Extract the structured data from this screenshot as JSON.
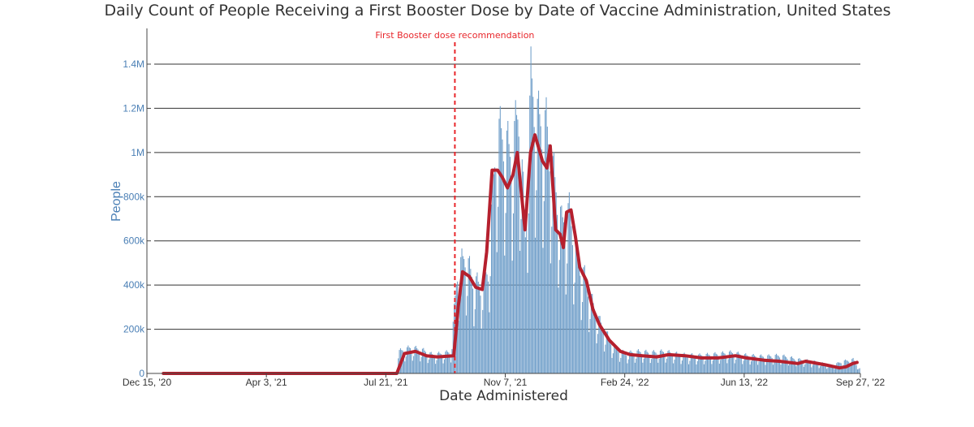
{
  "chart_data": {
    "type": "bar",
    "title": "Daily Count of People Receiving a First Booster Dose by Date of Vaccine Administration, United States",
    "xlabel": "Date Administered",
    "ylabel": "People",
    "ylim": [
      0,
      1500000
    ],
    "yticks": [
      0,
      200000,
      400000,
      600000,
      800000,
      1000000,
      1200000,
      1400000
    ],
    "ytick_labels": [
      "0",
      "200k",
      "400k",
      "600k",
      "800k",
      "1M",
      "1.2M",
      "1.4M"
    ],
    "xlim": [
      "2020-12-15",
      "2022-09-27"
    ],
    "xticks": [
      "2020-12-15",
      "2021-04-03",
      "2021-07-21",
      "2021-11-07",
      "2022-02-24",
      "2022-06-13",
      "2022-09-27"
    ],
    "xtick_labels": [
      "Dec 15, '20",
      "Apr 3, '21",
      "Jul 21, '21",
      "Nov 7, '21",
      "Feb 24, '22",
      "Jun 13, '22",
      "Sep 27, '22"
    ],
    "grid": true,
    "annotation": {
      "text": "First Booster dose recommendation",
      "date": "2021-09-22"
    },
    "series": [
      {
        "type": "bar",
        "color": "#6f9ec9",
        "points": [
          [
            "2021-08-01",
            110000
          ],
          [
            "2021-08-12",
            130000
          ],
          [
            "2021-08-22",
            120000
          ],
          [
            "2021-09-01",
            95000
          ],
          [
            "2021-09-10",
            100000
          ],
          [
            "2021-09-18",
            110000
          ],
          [
            "2021-09-24",
            520000
          ],
          [
            "2021-10-01",
            600000
          ],
          [
            "2021-10-08",
            480000
          ],
          [
            "2021-10-15",
            440000
          ],
          [
            "2021-10-22",
            520000
          ],
          [
            "2021-10-26",
            900000
          ],
          [
            "2021-10-30",
            1220000
          ],
          [
            "2021-11-05",
            1200000
          ],
          [
            "2021-11-12",
            1100000
          ],
          [
            "2021-11-19",
            1340000
          ],
          [
            "2021-11-25",
            700000
          ],
          [
            "2021-11-30",
            1480000
          ],
          [
            "2021-12-07",
            1280000
          ],
          [
            "2021-12-14",
            1250000
          ],
          [
            "2021-12-21",
            1000000
          ],
          [
            "2021-12-28",
            760000
          ],
          [
            "2022-01-04",
            820000
          ],
          [
            "2022-01-11",
            600000
          ],
          [
            "2022-01-18",
            490000
          ],
          [
            "2022-01-25",
            360000
          ],
          [
            "2022-02-01",
            260000
          ],
          [
            "2022-02-08",
            190000
          ],
          [
            "2022-02-15",
            130000
          ],
          [
            "2022-02-24",
            100000
          ],
          [
            "2022-03-08",
            110000
          ],
          [
            "2022-03-20",
            105000
          ],
          [
            "2022-04-01",
            110000
          ],
          [
            "2022-04-15",
            95000
          ],
          [
            "2022-05-01",
            90000
          ],
          [
            "2022-05-15",
            95000
          ],
          [
            "2022-06-01",
            105000
          ],
          [
            "2022-06-15",
            90000
          ],
          [
            "2022-07-01",
            85000
          ],
          [
            "2022-07-15",
            90000
          ],
          [
            "2022-08-01",
            70000
          ],
          [
            "2022-08-15",
            60000
          ],
          [
            "2022-09-01",
            40000
          ],
          [
            "2022-09-10",
            60000
          ],
          [
            "2022-09-20",
            70000
          ],
          [
            "2022-09-26",
            25000
          ]
        ]
      },
      {
        "type": "line",
        "color": "#b5202e",
        "points": [
          [
            "2020-12-30",
            0
          ],
          [
            "2021-07-31",
            0
          ],
          [
            "2021-08-07",
            90000
          ],
          [
            "2021-08-17",
            100000
          ],
          [
            "2021-08-27",
            80000
          ],
          [
            "2021-09-06",
            75000
          ],
          [
            "2021-09-21",
            80000
          ],
          [
            "2021-09-25",
            300000
          ],
          [
            "2021-09-29",
            460000
          ],
          [
            "2021-10-05",
            440000
          ],
          [
            "2021-10-11",
            390000
          ],
          [
            "2021-10-17",
            380000
          ],
          [
            "2021-10-21",
            550000
          ],
          [
            "2021-10-26",
            920000
          ],
          [
            "2021-10-31",
            920000
          ],
          [
            "2021-11-04",
            890000
          ],
          [
            "2021-11-09",
            840000
          ],
          [
            "2021-11-14",
            900000
          ],
          [
            "2021-11-18",
            1000000
          ],
          [
            "2021-11-22",
            800000
          ],
          [
            "2021-11-25",
            650000
          ],
          [
            "2021-11-30",
            1000000
          ],
          [
            "2021-12-04",
            1080000
          ],
          [
            "2021-12-11",
            960000
          ],
          [
            "2021-12-15",
            930000
          ],
          [
            "2021-12-18",
            1030000
          ],
          [
            "2021-12-23",
            650000
          ],
          [
            "2021-12-27",
            630000
          ],
          [
            "2021-12-30",
            570000
          ],
          [
            "2022-01-02",
            730000
          ],
          [
            "2022-01-06",
            740000
          ],
          [
            "2022-01-10",
            620000
          ],
          [
            "2022-01-14",
            480000
          ],
          [
            "2022-01-20",
            420000
          ],
          [
            "2022-01-26",
            290000
          ],
          [
            "2022-02-01",
            220000
          ],
          [
            "2022-02-10",
            150000
          ],
          [
            "2022-02-20",
            100000
          ],
          [
            "2022-03-01",
            85000
          ],
          [
            "2022-03-12",
            80000
          ],
          [
            "2022-03-25",
            75000
          ],
          [
            "2022-04-05",
            85000
          ],
          [
            "2022-04-20",
            80000
          ],
          [
            "2022-05-05",
            70000
          ],
          [
            "2022-05-20",
            70000
          ],
          [
            "2022-06-05",
            80000
          ],
          [
            "2022-06-15",
            70000
          ],
          [
            "2022-07-01",
            60000
          ],
          [
            "2022-07-15",
            55000
          ],
          [
            "2022-08-01",
            45000
          ],
          [
            "2022-08-08",
            55000
          ],
          [
            "2022-08-25",
            40000
          ],
          [
            "2022-09-08",
            25000
          ],
          [
            "2022-09-14",
            30000
          ],
          [
            "2022-09-20",
            45000
          ],
          [
            "2022-09-24",
            50000
          ]
        ]
      }
    ]
  }
}
